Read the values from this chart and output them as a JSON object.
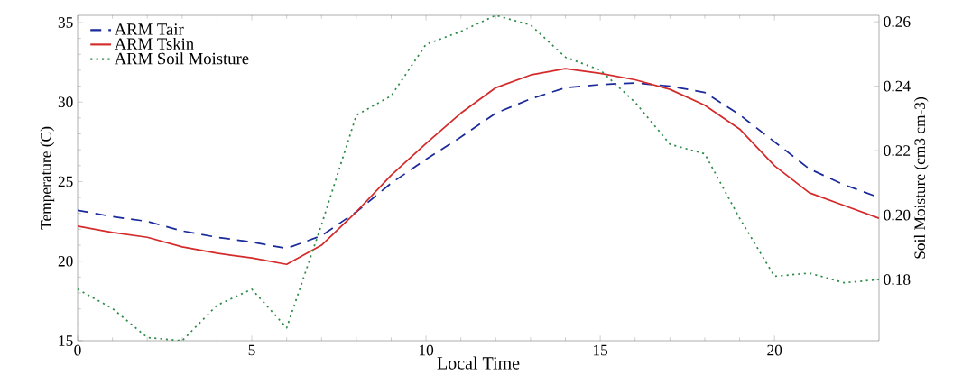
{
  "chart_data": {
    "type": "line",
    "xlabel": "Local Time",
    "ylabel": "Temperature (C)",
    "y2label": "Soil Moisture (cm3 cm-3)",
    "x": [
      0,
      1,
      2,
      3,
      4,
      5,
      6,
      7,
      8,
      9,
      10,
      11,
      12,
      13,
      14,
      15,
      16,
      17,
      18,
      19,
      20,
      21,
      22,
      23
    ],
    "series": [
      {
        "name": "ARM Tair",
        "color": "#1a2a9a",
        "line_style": "dashed",
        "values": [
          23.2,
          22.8,
          22.5,
          21.9,
          21.5,
          21.2,
          20.8,
          21.6,
          23.1,
          24.9,
          26.4,
          27.8,
          29.3,
          30.2,
          30.9,
          31.1,
          31.2,
          31.0,
          30.6,
          29.2,
          27.5,
          25.8,
          24.8,
          24.0
        ]
      },
      {
        "name": "ARM Tskin",
        "color": "#d42a2a",
        "line_style": "solid",
        "values": [
          22.2,
          21.8,
          21.5,
          20.9,
          20.5,
          20.2,
          19.8,
          21.0,
          23.1,
          25.4,
          27.4,
          29.3,
          30.9,
          31.7,
          32.1,
          31.8,
          31.4,
          30.8,
          29.8,
          28.3,
          26.0,
          24.3,
          23.5,
          22.7
        ]
      },
      {
        "name": "ARM Soil Moisture",
        "color": "#2e8b4a",
        "line_style": "dotted",
        "axis": "y2",
        "values": [
          0.177,
          0.171,
          0.162,
          0.161,
          0.172,
          0.177,
          0.165,
          0.197,
          0.231,
          0.237,
          0.253,
          0.257,
          0.262,
          0.259,
          0.249,
          0.245,
          0.235,
          0.222,
          0.219,
          0.199,
          0.181,
          0.182,
          0.179,
          0.18
        ]
      }
    ],
    "xlim": [
      0,
      23
    ],
    "xticks": [
      0,
      5,
      10,
      15,
      20
    ],
    "ylim": [
      15,
      35.45
    ],
    "yticks": [
      15,
      20,
      25,
      30,
      35
    ],
    "y2lim": [
      0.161,
      0.262
    ],
    "y2ticks": [
      {
        "value": 0.18,
        "label": "0.18"
      },
      {
        "value": 0.2,
        "label": "0.20"
      },
      {
        "value": 0.22,
        "label": "0.22"
      },
      {
        "value": 0.24,
        "label": "0.24"
      },
      {
        "value": 0.26,
        "label": "0.26"
      }
    ],
    "legend": "top left",
    "marker": "none",
    "grid": false
  }
}
